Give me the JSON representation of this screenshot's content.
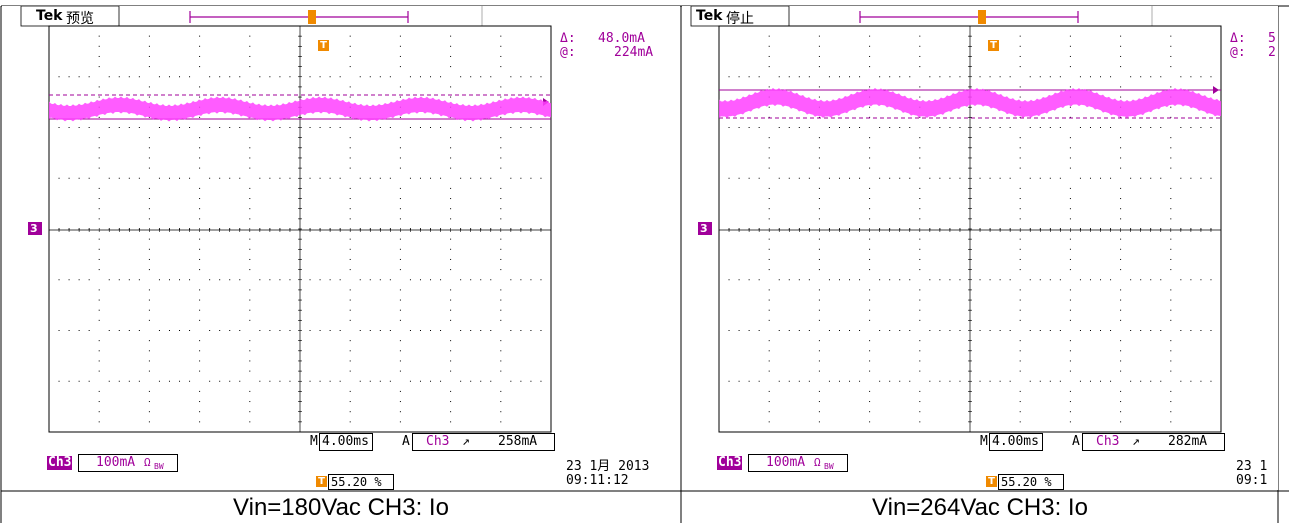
{
  "screens": [
    {
      "brand": "Tek",
      "status": "预览",
      "delta_label": "Δ:",
      "delta_value": "48.0mA",
      "at_label": "@:",
      "at_value": "224mA",
      "timebase_prefix": "M",
      "timebase": "4.00ms",
      "trigger_prefix": "A",
      "trigger_channel": "Ch3",
      "trigger_slope": "↗",
      "trigger_level": "258mA",
      "channel": "Ch3",
      "channel_scale": "100mA",
      "channel_suffix": "Ω",
      "channel_bw": "BW",
      "trigger_position": "55.20 %",
      "date": "23 1月 2013",
      "time": "09:11:12",
      "ch_marker": "3",
      "caption": "Vin=180Vac CH3: Io"
    },
    {
      "brand": "Tek",
      "status": "停止",
      "delta_label": "Δ:",
      "delta_value": "5",
      "at_label": "@:",
      "at_value": "2",
      "timebase_prefix": "M",
      "timebase": "4.00ms",
      "trigger_prefix": "A",
      "trigger_channel": "Ch3",
      "trigger_slope": "↗",
      "trigger_level": "282mA",
      "channel": "Ch3",
      "channel_scale": "100mA",
      "channel_suffix": "Ω",
      "channel_bw": "BW",
      "trigger_position": "55.20 %",
      "date": "23 1",
      "time": "09:1",
      "ch_marker": "3",
      "caption": "Vin=264Vac CH3: Io"
    }
  ],
  "colors": {
    "trace": "#ff40ff",
    "cursor": "#a0009a",
    "trigger": "#f08a00",
    "grid": "#000000"
  },
  "icons": {
    "trigger_marker": "trigger-t-icon",
    "channel_marker": "ch3-ground-icon"
  }
}
